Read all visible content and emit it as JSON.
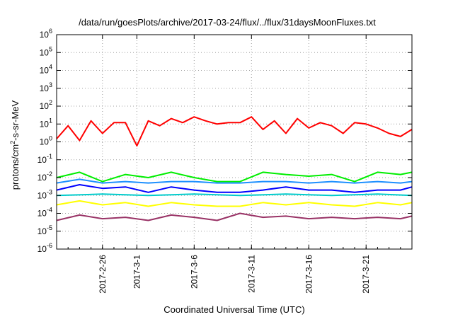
{
  "chart_data": {
    "type": "line",
    "title": "/data/run/goesPlots/archive/2017-03-24/flux/../flux/31daysMoonFluxes.txt",
    "xlabel": "Coordinated Universal Time (UTC)",
    "ylabel_parts": [
      "protons/cm",
      "2",
      "-s-sr-MeV"
    ],
    "xlim": [
      "2017-02-22",
      "2017-03-25"
    ],
    "ylim": [
      1e-06,
      1000000.0
    ],
    "yscale": "log",
    "grid": true,
    "legend": "none",
    "yticks": [
      {
        "base": "10",
        "exp": "-6",
        "value": 1e-06
      },
      {
        "base": "10",
        "exp": "-5",
        "value": 1e-05
      },
      {
        "base": "10",
        "exp": "-4",
        "value": 0.0001
      },
      {
        "base": "10",
        "exp": "-3",
        "value": 0.001
      },
      {
        "base": "10",
        "exp": "-2",
        "value": 0.01
      },
      {
        "base": "10",
        "exp": "-1",
        "value": 0.1
      },
      {
        "base": "10",
        "exp": "0",
        "value": 1
      },
      {
        "base": "10",
        "exp": "1",
        "value": 10
      },
      {
        "base": "10",
        "exp": "2",
        "value": 100
      },
      {
        "base": "10",
        "exp": "3",
        "value": 1000
      },
      {
        "base": "10",
        "exp": "4",
        "value": 10000
      },
      {
        "base": "10",
        "exp": "5",
        "value": 100000
      },
      {
        "base": "10",
        "exp": "6",
        "value": 1000000
      }
    ],
    "xticks": [
      {
        "label": "2017-2-26",
        "date": "2017-02-26"
      },
      {
        "label": "2017-3-1",
        "date": "2017-03-01"
      },
      {
        "label": "2017-3-6",
        "date": "2017-03-06"
      },
      {
        "label": "2017-3-11",
        "date": "2017-03-11"
      },
      {
        "label": "2017-3-16",
        "date": "2017-03-16"
      },
      {
        "label": "2017-3-21",
        "date": "2017-03-21"
      }
    ],
    "series": [
      {
        "color": "#ff0000",
        "x": [
          "2017-02-22",
          "2017-02-23",
          "2017-02-24",
          "2017-02-25",
          "2017-02-26",
          "2017-02-27",
          "2017-02-28",
          "2017-03-01",
          "2017-03-02",
          "2017-03-03",
          "2017-03-04",
          "2017-03-05",
          "2017-03-06",
          "2017-03-07",
          "2017-03-08",
          "2017-03-09",
          "2017-03-10",
          "2017-03-11",
          "2017-03-12",
          "2017-03-13",
          "2017-03-14",
          "2017-03-15",
          "2017-03-16",
          "2017-03-17",
          "2017-03-18",
          "2017-03-19",
          "2017-03-20",
          "2017-03-21",
          "2017-03-22",
          "2017-03-23",
          "2017-03-24",
          "2017-03-25"
        ],
        "values": [
          1.5,
          8,
          1.2,
          15,
          3,
          12,
          12,
          0.6,
          15,
          8,
          20,
          12,
          25,
          15,
          10,
          12,
          12,
          25,
          5,
          15,
          3,
          20,
          6,
          12,
          8,
          3,
          12,
          10,
          6,
          3,
          2,
          5
        ]
      },
      {
        "color": "#00ee00",
        "x": [
          "2017-02-22",
          "2017-02-24",
          "2017-02-26",
          "2017-02-28",
          "2017-03-02",
          "2017-03-04",
          "2017-03-06",
          "2017-03-08",
          "2017-03-10",
          "2017-03-12",
          "2017-03-14",
          "2017-03-16",
          "2017-03-18",
          "2017-03-20",
          "2017-03-22",
          "2017-03-24",
          "2017-03-25"
        ],
        "values": [
          0.01,
          0.02,
          0.006,
          0.015,
          0.01,
          0.02,
          0.01,
          0.006,
          0.006,
          0.02,
          0.015,
          0.012,
          0.015,
          0.006,
          0.02,
          0.015,
          0.02
        ]
      },
      {
        "color": "#1e90ff",
        "x": [
          "2017-02-22",
          "2017-02-24",
          "2017-02-26",
          "2017-02-28",
          "2017-03-02",
          "2017-03-04",
          "2017-03-06",
          "2017-03-08",
          "2017-03-10",
          "2017-03-12",
          "2017-03-14",
          "2017-03-16",
          "2017-03-18",
          "2017-03-20",
          "2017-03-22",
          "2017-03-24",
          "2017-03-25"
        ],
        "values": [
          0.005,
          0.008,
          0.005,
          0.006,
          0.005,
          0.006,
          0.006,
          0.005,
          0.005,
          0.006,
          0.006,
          0.005,
          0.006,
          0.005,
          0.006,
          0.005,
          0.006
        ]
      },
      {
        "color": "#0000ff",
        "x": [
          "2017-02-22",
          "2017-02-24",
          "2017-02-26",
          "2017-02-28",
          "2017-03-02",
          "2017-03-04",
          "2017-03-06",
          "2017-03-08",
          "2017-03-10",
          "2017-03-12",
          "2017-03-14",
          "2017-03-16",
          "2017-03-18",
          "2017-03-20",
          "2017-03-22",
          "2017-03-24",
          "2017-03-25"
        ],
        "values": [
          0.002,
          0.004,
          0.0025,
          0.003,
          0.0015,
          0.003,
          0.002,
          0.0015,
          0.0015,
          0.002,
          0.003,
          0.002,
          0.002,
          0.0015,
          0.002,
          0.002,
          0.003
        ]
      },
      {
        "color": "#00cccc",
        "x": [
          "2017-02-22",
          "2017-02-26",
          "2017-03-02",
          "2017-03-06",
          "2017-03-10",
          "2017-03-14",
          "2017-03-18",
          "2017-03-22",
          "2017-03-25"
        ],
        "values": [
          0.001,
          0.0012,
          0.001,
          0.0012,
          0.001,
          0.0012,
          0.001,
          0.0012,
          0.001
        ]
      },
      {
        "color": "#ffff00",
        "x": [
          "2017-02-22",
          "2017-02-24",
          "2017-02-26",
          "2017-02-28",
          "2017-03-02",
          "2017-03-04",
          "2017-03-06",
          "2017-03-08",
          "2017-03-10",
          "2017-03-12",
          "2017-03-14",
          "2017-03-16",
          "2017-03-18",
          "2017-03-20",
          "2017-03-22",
          "2017-03-24",
          "2017-03-25"
        ],
        "values": [
          0.0003,
          0.0005,
          0.0003,
          0.0004,
          0.00025,
          0.0004,
          0.0003,
          0.00025,
          0.00025,
          0.0004,
          0.0003,
          0.0004,
          0.0003,
          0.00025,
          0.0004,
          0.0003,
          0.0004
        ]
      },
      {
        "color": "#993366",
        "x": [
          "2017-02-22",
          "2017-02-24",
          "2017-02-26",
          "2017-02-28",
          "2017-03-02",
          "2017-03-04",
          "2017-03-06",
          "2017-03-08",
          "2017-03-10",
          "2017-03-12",
          "2017-03-14",
          "2017-03-16",
          "2017-03-18",
          "2017-03-20",
          "2017-03-22",
          "2017-03-24",
          "2017-03-25"
        ],
        "values": [
          4e-05,
          8e-05,
          5e-05,
          6e-05,
          4e-05,
          8e-05,
          6e-05,
          4e-05,
          0.0001,
          6e-05,
          7e-05,
          5e-05,
          6e-05,
          5e-05,
          6e-05,
          5e-05,
          7e-05
        ]
      }
    ]
  }
}
